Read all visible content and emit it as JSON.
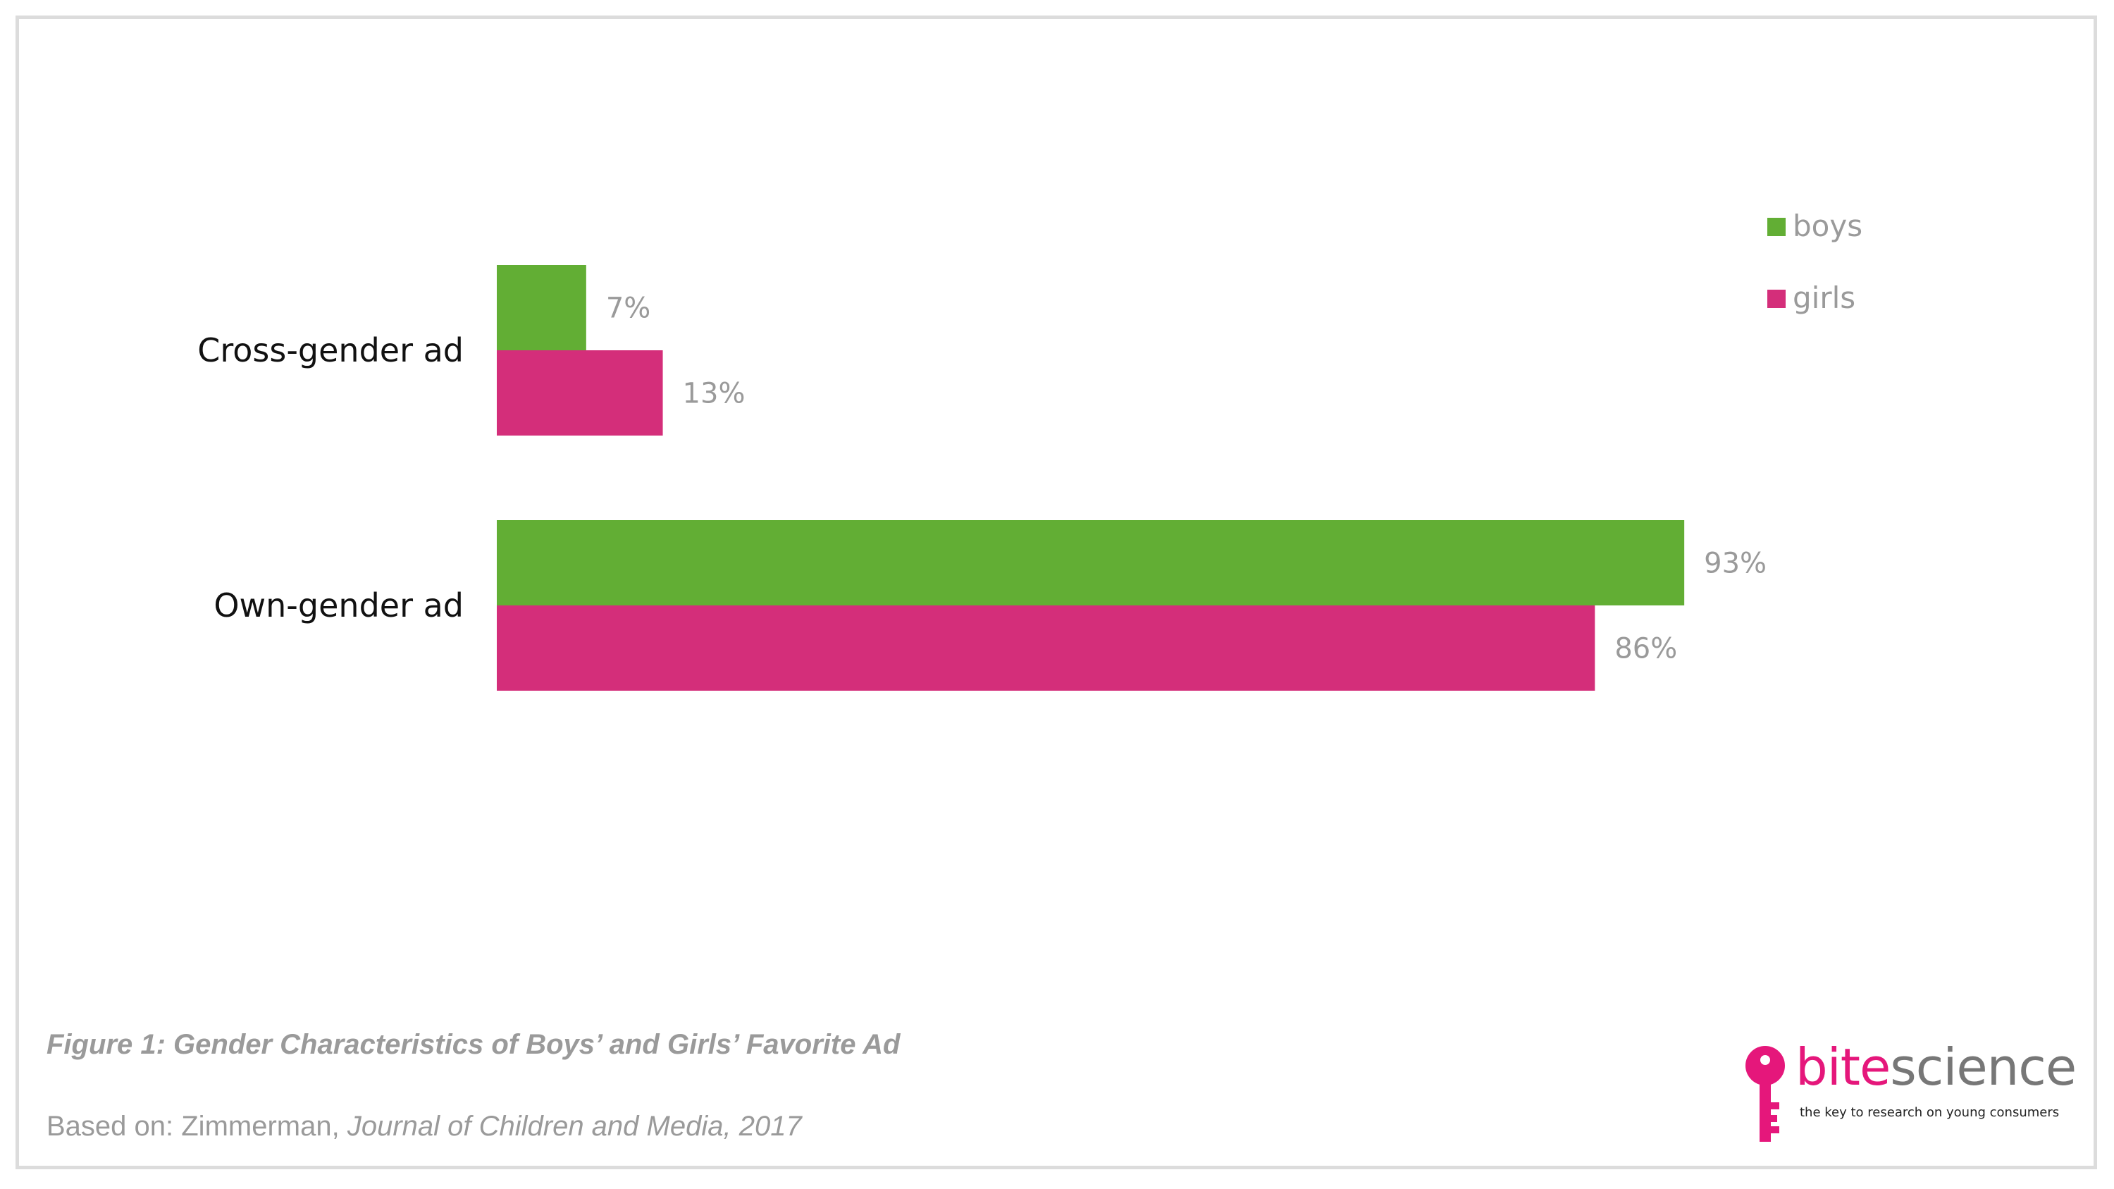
{
  "chart_data": {
    "type": "bar",
    "orientation": "horizontal",
    "categories": [
      "Cross-gender ad",
      "Own-gender ad"
    ],
    "series": [
      {
        "name": "boys",
        "color": "#62ae34",
        "values": [
          7,
          93
        ],
        "labels": [
          "7%",
          "93%"
        ]
      },
      {
        "name": "girls",
        "color": "#d42e7a",
        "values": [
          13,
          86
        ],
        "labels": [
          "13%",
          "86%"
        ]
      }
    ],
    "title": "",
    "xlabel": "",
    "ylabel": "",
    "xlim": [
      0,
      100
    ],
    "grid": false,
    "legend_position": "top-right",
    "value_unit": "%"
  },
  "caption": {
    "figure": "Figure 1: Gender Characteristics of Boys’ and Girls’ Favorite Ad",
    "source_prefix": "Based on: Zimmerman, ",
    "source_italic": "Journal of Children and Media, 2017"
  },
  "logo": {
    "brand_part1": "bite",
    "brand_part2": "science",
    "tagline": "the key to research on young consumers",
    "icon": "key-icon",
    "brand_color": "#e5177b"
  }
}
